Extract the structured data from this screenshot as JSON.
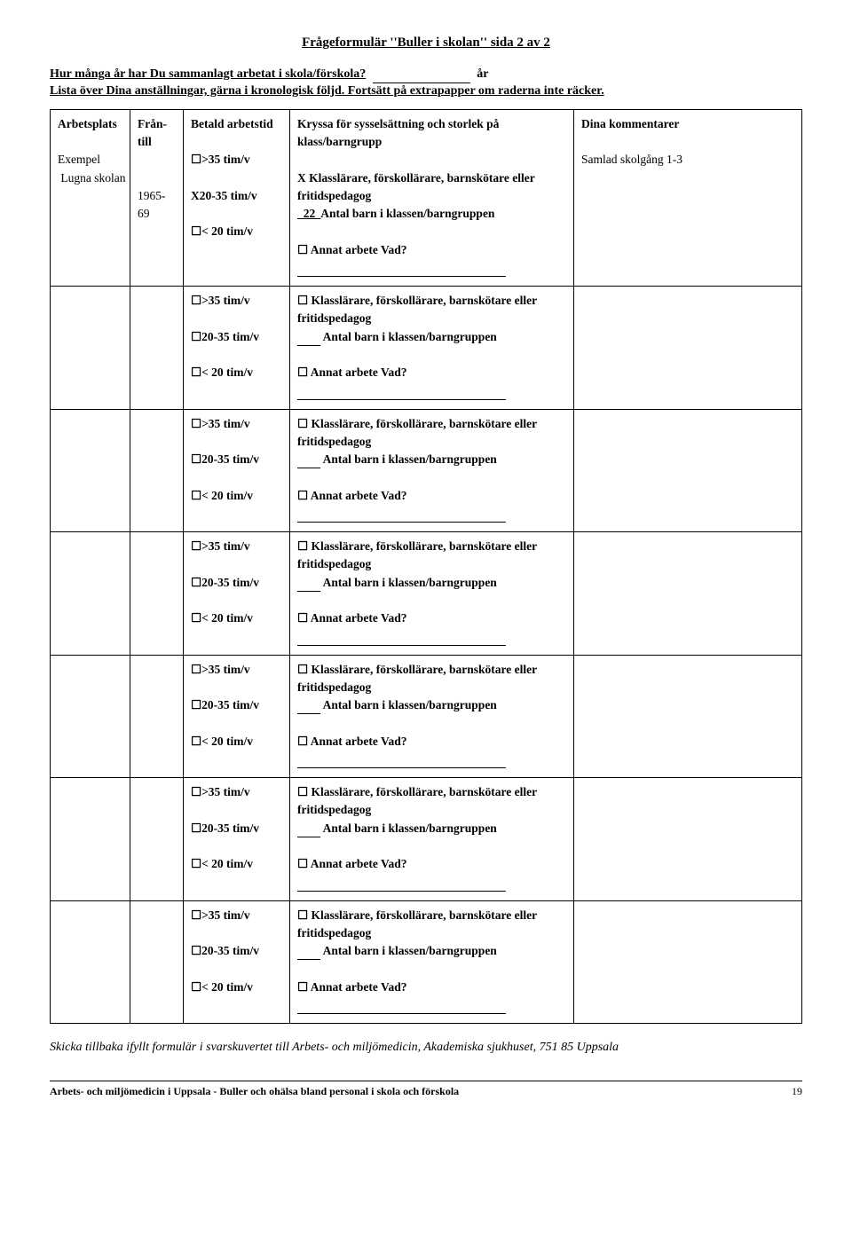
{
  "title": "Frågeformulär ''Buller i skolan'' sida 2 av 2",
  "preamble": {
    "q1": "Hur många år har Du sammanlagt arbetat i skola/förskola?",
    "years_suffix": "år",
    "line2": "Lista över Dina anställningar, gärna i kronologisk följd. Fortsätt på extrapapper om raderna inte räcker."
  },
  "headers": {
    "arbetsplats": "Arbetsplats",
    "fran_till": "Från- till",
    "arbetstid": "Betald arbetstid",
    "kryssa": "Kryssa för sysselsättning och storlek  på klass/barngrupp",
    "kommentarer": "Dina kommentarer"
  },
  "hours": {
    "gt35": ">35 tim/v",
    "mid": "20-35 tim/v",
    "lt20": "< 20 tim/v"
  },
  "job": {
    "role": "Klasslärare, förskollärare, barnskötare eller fritidspedagog",
    "count_label": "Antal barn i klassen/barngruppen",
    "annat": "Annat arbete  Vad?"
  },
  "example": {
    "arbetsplats_l1": "Exempel",
    "arbetsplats_l2": " Lugna skolan",
    "fran_till": "1965-69",
    "mark": "X",
    "count": "  22  ",
    "kommentar": "Samlad  skolgång 1-3"
  },
  "footer_note": "Skicka tillbaka ifyllt formulär i svarskuvertet till Arbets- och miljömedicin, Akademiska sjukhuset, 751 85 Uppsala",
  "page_footer": {
    "source": "Arbets- och miljömedicin i Uppsala - Buller och ohälsa bland personal i skola och förskola",
    "page": "19"
  }
}
